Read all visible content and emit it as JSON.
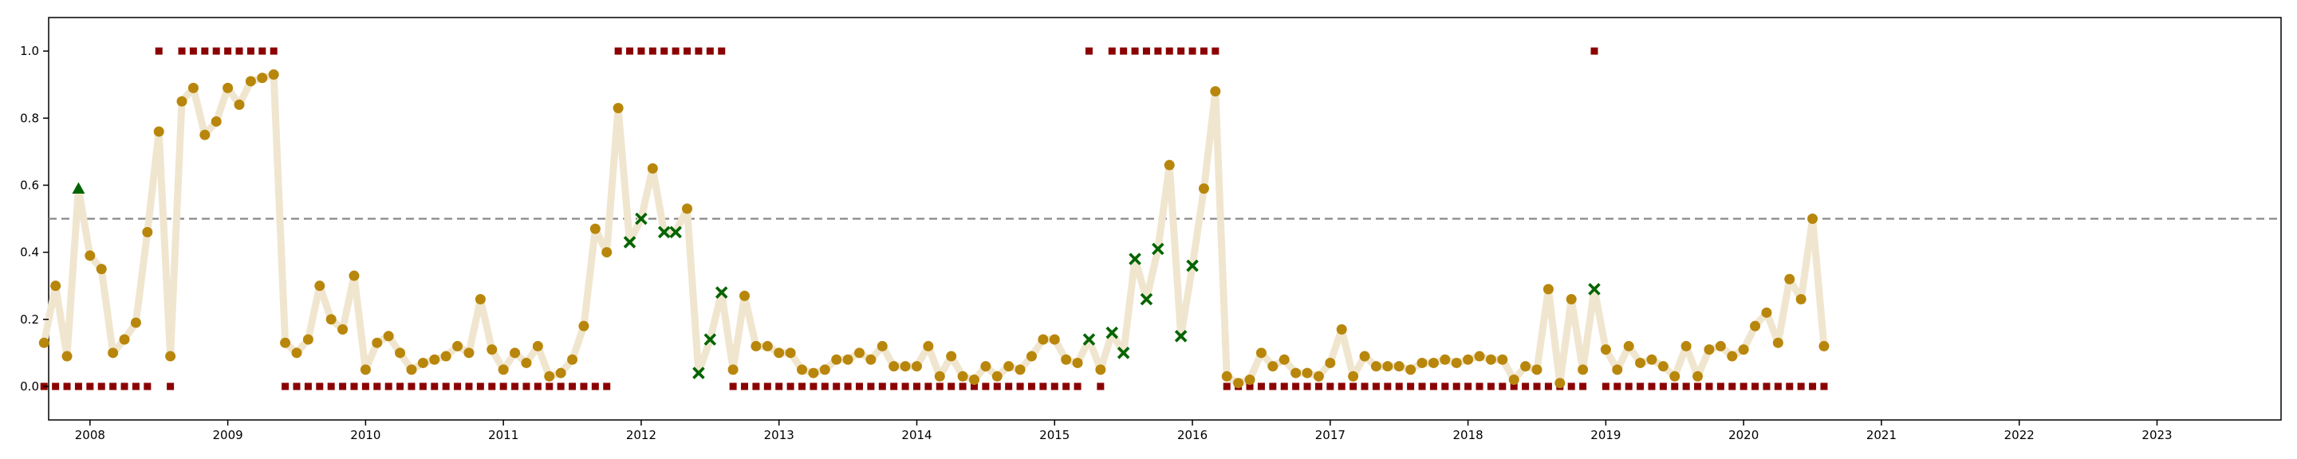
{
  "chart_data": {
    "type": "scatter",
    "title": "",
    "xlabel": "",
    "ylabel": "",
    "xlim": [
      2007.7,
      2023.9
    ],
    "ylim": [
      -0.1,
      1.1
    ],
    "x_ticks": [
      2008,
      2009,
      2010,
      2011,
      2012,
      2013,
      2014,
      2015,
      2016,
      2017,
      2018,
      2019,
      2020,
      2021,
      2022,
      2023
    ],
    "x_tick_labels": [
      "2008",
      "2009",
      "2010",
      "2011",
      "2012",
      "2013",
      "2014",
      "2015",
      "2016",
      "2017",
      "2018",
      "2019",
      "2020",
      "2021",
      "2022",
      "2023"
    ],
    "y_ticks": [
      0.0,
      0.2,
      0.4,
      0.6,
      0.8,
      1.0
    ],
    "y_tick_labels": [
      "0.0",
      "0.2",
      "0.4",
      "0.6",
      "0.8",
      "1.0"
    ],
    "grid": false,
    "threshold": 0.5,
    "x": [
      "2007-09",
      "2007-10",
      "2007-11",
      "2007-12",
      "2008-01",
      "2008-02",
      "2008-03",
      "2008-04",
      "2008-05",
      "2008-06",
      "2008-07",
      "2008-08",
      "2008-09",
      "2008-10",
      "2008-11",
      "2008-12",
      "2009-01",
      "2009-02",
      "2009-03",
      "2009-04",
      "2009-05",
      "2009-06",
      "2009-07",
      "2009-08",
      "2009-09",
      "2009-10",
      "2009-11",
      "2009-12",
      "2010-01",
      "2010-02",
      "2010-03",
      "2010-04",
      "2010-05",
      "2010-06",
      "2010-07",
      "2010-08",
      "2010-09",
      "2010-10",
      "2010-11",
      "2010-12",
      "2011-01",
      "2011-02",
      "2011-03",
      "2011-04",
      "2011-05",
      "2011-06",
      "2011-07",
      "2011-08",
      "2011-09",
      "2011-10",
      "2011-11",
      "2011-12",
      "2012-01",
      "2012-02",
      "2012-03",
      "2012-04",
      "2012-05",
      "2012-06",
      "2012-07",
      "2012-08",
      "2012-09",
      "2012-10",
      "2012-11",
      "2012-12",
      "2013-01",
      "2013-02",
      "2013-03",
      "2013-04",
      "2013-05",
      "2013-06",
      "2013-07",
      "2013-08",
      "2013-09",
      "2013-10",
      "2013-11",
      "2013-12",
      "2014-01",
      "2014-02",
      "2014-03",
      "2014-04",
      "2014-05",
      "2014-06",
      "2014-07",
      "2014-08",
      "2014-09",
      "2014-10",
      "2014-11",
      "2014-12",
      "2015-01",
      "2015-02",
      "2015-03",
      "2015-04",
      "2015-05",
      "2015-06",
      "2015-07",
      "2015-08",
      "2015-09",
      "2015-10",
      "2015-11",
      "2015-12",
      "2016-01",
      "2016-02",
      "2016-03",
      "2016-04",
      "2016-05",
      "2016-06",
      "2016-07",
      "2016-08",
      "2016-09",
      "2016-10",
      "2016-11",
      "2016-12",
      "2017-01",
      "2017-02",
      "2017-03",
      "2017-04",
      "2017-05",
      "2017-06",
      "2017-07",
      "2017-08",
      "2017-09",
      "2017-10",
      "2017-11",
      "2017-12",
      "2018-01",
      "2018-02",
      "2018-03",
      "2018-04",
      "2018-05",
      "2018-06",
      "2018-07",
      "2018-08",
      "2018-09",
      "2018-10",
      "2018-11",
      "2018-12",
      "2019-01",
      "2019-02",
      "2019-03",
      "2019-04",
      "2019-05",
      "2019-06",
      "2019-07",
      "2019-08",
      "2019-09",
      "2019-10",
      "2019-11",
      "2019-12",
      "2020-01",
      "2020-02",
      "2020-03",
      "2020-04",
      "2020-05",
      "2020-06",
      "2020-07",
      "2020-08"
    ],
    "y": [
      0.13,
      0.3,
      0.09,
      0.59,
      0.39,
      0.35,
      0.1,
      0.14,
      0.19,
      0.46,
      0.76,
      0.09,
      0.85,
      0.89,
      0.75,
      0.79,
      0.89,
      0.84,
      0.91,
      0.92,
      0.93,
      0.13,
      0.1,
      0.14,
      0.3,
      0.2,
      0.17,
      0.33,
      0.05,
      0.13,
      0.15,
      0.1,
      0.05,
      0.07,
      0.08,
      0.09,
      0.12,
      0.1,
      0.26,
      0.11,
      0.05,
      0.1,
      0.07,
      0.12,
      0.03,
      0.04,
      0.08,
      0.18,
      0.47,
      0.4,
      0.83,
      0.43,
      0.5,
      0.65,
      0.46,
      0.46,
      0.53,
      0.04,
      0.14,
      0.28,
      0.05,
      0.27,
      0.12,
      0.12,
      0.1,
      0.1,
      0.05,
      0.04,
      0.05,
      0.08,
      0.08,
      0.1,
      0.08,
      0.12,
      0.06,
      0.06,
      0.06,
      0.12,
      0.03,
      0.09,
      0.03,
      0.02,
      0.06,
      0.03,
      0.06,
      0.05,
      0.09,
      0.14,
      0.14,
      0.08,
      0.07,
      0.14,
      0.05,
      0.16,
      0.1,
      0.38,
      0.26,
      0.41,
      0.66,
      0.15,
      0.36,
      0.59,
      0.88,
      0.03,
      0.01,
      0.02,
      0.1,
      0.06,
      0.08,
      0.04,
      0.04,
      0.03,
      0.07,
      0.17,
      0.03,
      0.09,
      0.06,
      0.06,
      0.06,
      0.05,
      0.07,
      0.07,
      0.08,
      0.07,
      0.08,
      0.09,
      0.08,
      0.08,
      0.02,
      0.06,
      0.05,
      0.29,
      0.01,
      0.26,
      0.05,
      0.29,
      0.11,
      0.05,
      0.12,
      0.07,
      0.08,
      0.06,
      0.03,
      0.12,
      0.03,
      0.11,
      0.12,
      0.09,
      0.11,
      0.18,
      0.22,
      0.13,
      0.32,
      0.26,
      0.5,
      0.12
    ],
    "marker": [
      "c",
      "c",
      "c",
      "t",
      "c",
      "c",
      "c",
      "c",
      "c",
      "c",
      "c",
      "c",
      "c",
      "c",
      "c",
      "c",
      "c",
      "c",
      "c",
      "c",
      "c",
      "c",
      "c",
      "c",
      "c",
      "c",
      "c",
      "c",
      "c",
      "c",
      "c",
      "c",
      "c",
      "c",
      "c",
      "c",
      "c",
      "c",
      "c",
      "c",
      "c",
      "c",
      "c",
      "c",
      "c",
      "c",
      "c",
      "c",
      "c",
      "c",
      "c",
      "x",
      "x",
      "c",
      "x",
      "x",
      "c",
      "x",
      "x",
      "x",
      "c",
      "c",
      "c",
      "c",
      "c",
      "c",
      "c",
      "c",
      "c",
      "c",
      "c",
      "c",
      "c",
      "c",
      "c",
      "c",
      "c",
      "c",
      "c",
      "c",
      "c",
      "c",
      "c",
      "c",
      "c",
      "c",
      "c",
      "c",
      "c",
      "c",
      "c",
      "x",
      "c",
      "x",
      "x",
      "x",
      "x",
      "x",
      "c",
      "x",
      "x",
      "c",
      "c",
      "c",
      "c",
      "c",
      "c",
      "c",
      "c",
      "c",
      "c",
      "c",
      "c",
      "c",
      "c",
      "c",
      "c",
      "c",
      "c",
      "c",
      "c",
      "c",
      "c",
      "c",
      "c",
      "c",
      "c",
      "c",
      "c",
      "c",
      "c",
      "c",
      "c",
      "c",
      "c",
      "x",
      "c",
      "c",
      "c",
      "c",
      "c",
      "c",
      "c",
      "c",
      "c",
      "c",
      "c",
      "c",
      "c",
      "c",
      "c",
      "c",
      "c",
      "c",
      "c",
      "c"
    ],
    "labels": [
      0,
      0,
      0,
      0,
      0,
      0,
      0,
      0,
      0,
      0,
      1,
      0,
      1,
      1,
      1,
      1,
      1,
      1,
      1,
      1,
      1,
      0,
      0,
      0,
      0,
      0,
      0,
      0,
      0,
      0,
      0,
      0,
      0,
      0,
      0,
      0,
      0,
      0,
      0,
      0,
      0,
      0,
      0,
      0,
      0,
      0,
      0,
      0,
      0,
      0,
      1,
      1,
      1,
      1,
      1,
      1,
      1,
      1,
      1,
      1,
      0,
      0,
      0,
      0,
      0,
      0,
      0,
      0,
      0,
      0,
      0,
      0,
      0,
      0,
      0,
      0,
      0,
      0,
      0,
      0,
      0,
      0,
      0,
      0,
      0,
      0,
      0,
      0,
      0,
      0,
      0,
      1,
      0,
      1,
      1,
      1,
      1,
      1,
      1,
      1,
      1,
      1,
      1,
      0,
      0,
      0,
      0,
      0,
      0,
      0,
      0,
      0,
      0,
      0,
      0,
      0,
      0,
      0,
      0,
      0,
      0,
      0,
      0,
      0,
      0,
      0,
      0,
      0,
      0,
      0,
      0,
      0,
      0,
      0,
      0,
      1,
      0,
      0,
      0,
      0,
      0,
      0,
      0,
      0,
      0,
      0,
      0,
      0,
      0,
      0,
      0,
      0,
      0,
      0,
      0,
      0
    ],
    "colors": {
      "circle": "#b8860b",
      "cross": "#006400",
      "triangle": "#006400",
      "label_square": "#8b0000",
      "line": "#f0e6cf",
      "threshold": "#888888",
      "axes": "#000000"
    }
  }
}
